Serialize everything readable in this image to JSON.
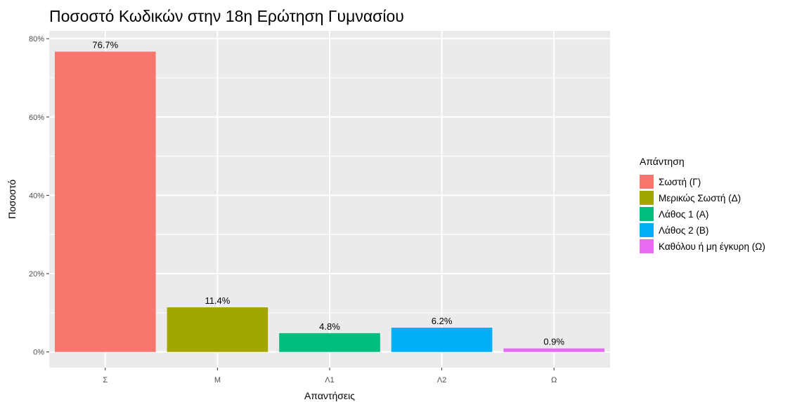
{
  "chart_data": {
    "type": "bar",
    "title": "Ποσοστό Κωδικών στην 18η Ερώτηση Γυμνασίου",
    "xlabel": "Απαντήσεις",
    "ylabel": "Ποσοστό",
    "categories": [
      "Σ",
      "Μ",
      "Λ1",
      "Λ2",
      "Ω"
    ],
    "values": [
      76.7,
      11.4,
      4.8,
      6.2,
      0.9
    ],
    "value_labels": [
      "76.7%",
      "11.4%",
      "4.8%",
      "6.2%",
      "0.9%"
    ],
    "colors": [
      "#F8766D",
      "#A3A500",
      "#00BF7D",
      "#00B0F6",
      "#E76BF3"
    ],
    "ylim": [
      0,
      80
    ],
    "yticks": [
      0,
      20,
      40,
      60,
      80
    ],
    "ytick_labels": [
      "0%",
      "20%",
      "40%",
      "60%",
      "80%"
    ],
    "grid": true,
    "legend": {
      "title": "Απάντηση",
      "position": "right",
      "entries": [
        "Σωστή (Γ)",
        "Μερικώς Σωστή (Δ)",
        "Λάθος 1 (Α)",
        "Λάθος 2 (Β)",
        "Καθόλου ή μη έγκυρη (Ω)"
      ]
    }
  }
}
